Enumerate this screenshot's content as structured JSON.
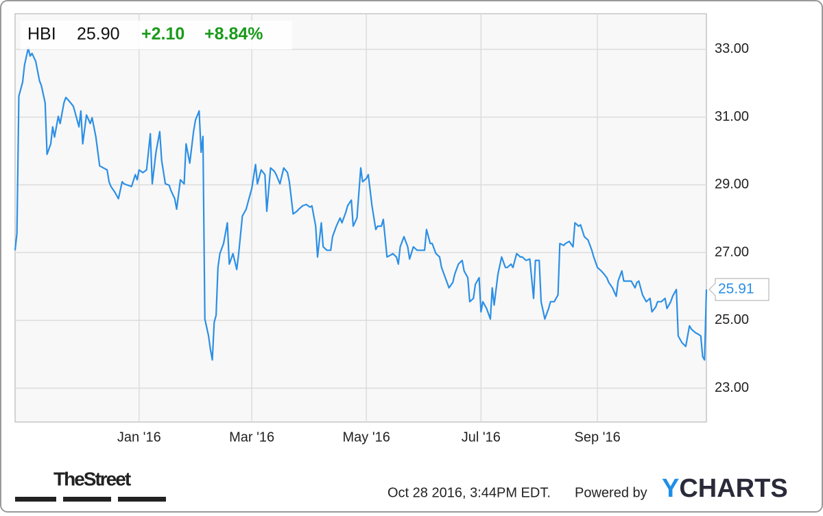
{
  "header": {
    "ticker": "HBI",
    "price": "25.90",
    "change": "+2.10",
    "change_pct": "+8.84%"
  },
  "chart_data": {
    "type": "line",
    "color": "#2b8fe6",
    "grid": true,
    "xlim": [
      0,
      368
    ],
    "ylim": [
      22,
      34.05
    ],
    "xticks": [
      {
        "value": 66,
        "label": "Jan '16"
      },
      {
        "value": 126,
        "label": "Mar '16"
      },
      {
        "value": 187,
        "label": "May '16"
      },
      {
        "value": 248,
        "label": "Jul '16"
      },
      {
        "value": 310,
        "label": "Sep '16"
      }
    ],
    "yticks": [
      {
        "value": 23,
        "label": "23.00"
      },
      {
        "value": 25,
        "label": "25.00"
      },
      {
        "value": 27,
        "label": "27.00"
      },
      {
        "value": 29,
        "label": "29.00"
      },
      {
        "value": 31,
        "label": "31.00"
      },
      {
        "value": 33,
        "label": "33.00"
      }
    ],
    "x": [
      0,
      1,
      2,
      4,
      5,
      7,
      8,
      9,
      11,
      13,
      14,
      16,
      17,
      19,
      20,
      21,
      23,
      24,
      26,
      27,
      29,
      31,
      32,
      34,
      35,
      36,
      38,
      40,
      41,
      43,
      45,
      47,
      49,
      50,
      51,
      53,
      55,
      57,
      58,
      60,
      62,
      64,
      65,
      66,
      68,
      70,
      72,
      73,
      75,
      77,
      78,
      80,
      82,
      83,
      85,
      86,
      88,
      90,
      91,
      93,
      95,
      96,
      98,
      99,
      100,
      101,
      103,
      104,
      105,
      106,
      107,
      108,
      109,
      111,
      113,
      114,
      116,
      118,
      119,
      121,
      123,
      124,
      126,
      128,
      129,
      131,
      133,
      134,
      136,
      138,
      139,
      141,
      143,
      145,
      146,
      148,
      150,
      151,
      153,
      155,
      157,
      158,
      160,
      161,
      163,
      164,
      166,
      168,
      169,
      171,
      173,
      174,
      176,
      177,
      179,
      180,
      182,
      184,
      185,
      187,
      188,
      190,
      192,
      193,
      195,
      196,
      198,
      200,
      201,
      203,
      204,
      205,
      207,
      209,
      210,
      212,
      214,
      216,
      218,
      219,
      221,
      222,
      224,
      226,
      227,
      229,
      231,
      233,
      234,
      236,
      238,
      239,
      241,
      242,
      244,
      245,
      247,
      248,
      249,
      251,
      253,
      254,
      255,
      257,
      259,
      261,
      262,
      264,
      265,
      267,
      269,
      270,
      272,
      274,
      276,
      277,
      279,
      280,
      282,
      284,
      285,
      287,
      289,
      290,
      292,
      293,
      295,
      297,
      298,
      300,
      301,
      303,
      305,
      307,
      308,
      310,
      312,
      313,
      315,
      316,
      318,
      320,
      321,
      323,
      324,
      326,
      328,
      330,
      331,
      332,
      334,
      336,
      338,
      339,
      341,
      342,
      344,
      346,
      347,
      349,
      350,
      352,
      353,
      355,
      357,
      359,
      360,
      362,
      364,
      365,
      366,
      367,
      368
    ],
    "values": [
      27.07,
      27.57,
      31.62,
      32.03,
      32.53,
      33.04,
      32.8,
      32.88,
      32.64,
      32.07,
      31.93,
      31.42,
      29.9,
      30.21,
      30.71,
      30.41,
      31.02,
      30.81,
      31.42,
      31.58,
      31.46,
      31.32,
      31.12,
      30.71,
      31.18,
      30.21,
      31.06,
      30.81,
      30.98,
      30.41,
      29.56,
      29.5,
      29.44,
      29.09,
      28.95,
      28.79,
      28.59,
      29.09,
      29.03,
      28.99,
      28.95,
      29.3,
      29.15,
      29.44,
      29.36,
      29.44,
      30.51,
      29.03,
      29.96,
      30.57,
      29.72,
      29.03,
      28.99,
      28.83,
      28.59,
      28.28,
      29.15,
      29.03,
      30.21,
      29.64,
      30.57,
      30.91,
      31.18,
      29.96,
      30.43,
      25.04,
      24.54,
      24.13,
      23.83,
      24.94,
      25.15,
      26.56,
      26.97,
      27.27,
      27.88,
      26.66,
      26.97,
      26.5,
      26.97,
      28.08,
      28.28,
      28.49,
      28.89,
      29.6,
      29.03,
      29.44,
      29.3,
      28.22,
      29.5,
      29.4,
      29.3,
      29.03,
      29.5,
      29.36,
      29.09,
      28.14,
      28.22,
      28.28,
      28.38,
      28.42,
      28.34,
      28.38,
      27.78,
      26.87,
      27.88,
      27.17,
      27.07,
      27.07,
      27.47,
      27.78,
      28.02,
      27.88,
      28.18,
      28.38,
      28.55,
      27.78,
      28.02,
      29.5,
      29.09,
      29.19,
      29.3,
      28.38,
      27.68,
      27.78,
      27.78,
      27.98,
      26.87,
      26.93,
      26.97,
      26.87,
      26.66,
      27.17,
      27.47,
      27.17,
      26.81,
      27.17,
      27.07,
      27.07,
      27.07,
      27.68,
      27.27,
      27.27,
      26.97,
      26.87,
      26.56,
      26.26,
      25.96,
      26.12,
      26.36,
      26.66,
      26.77,
      26.46,
      26.26,
      25.55,
      25.65,
      26.06,
      26.26,
      25.25,
      25.55,
      25.35,
      25.04,
      25.96,
      25.45,
      26.36,
      26.87,
      26.56,
      26.56,
      26.66,
      26.56,
      26.97,
      26.87,
      26.87,
      26.77,
      26.81,
      25.65,
      26.77,
      26.77,
      25.55,
      25.04,
      25.35,
      25.55,
      25.55,
      25.75,
      27.27,
      27.21,
      27.27,
      27.33,
      27.17,
      27.88,
      27.78,
      27.82,
      27.47,
      27.37,
      27.07,
      26.87,
      26.56,
      26.46,
      26.4,
      26.26,
      26.12,
      25.96,
      25.71,
      26.16,
      26.46,
      26.16,
      26.16,
      26.16,
      25.96,
      26.12,
      26.16,
      25.75,
      25.55,
      25.65,
      25.25,
      25.39,
      25.55,
      25.55,
      25.65,
      25.35,
      25.55,
      25.71,
      25.91,
      24.54,
      24.34,
      24.23,
      24.84,
      24.74,
      24.64,
      24.58,
      24.54,
      23.93,
      23.83,
      25.91
    ]
  },
  "footer": {
    "brand": "TheStreet",
    "timestamp": "Oct 28 2016, 3:44PM EDT.",
    "powered_by": "Powered by",
    "logo": "YCHARTS"
  }
}
